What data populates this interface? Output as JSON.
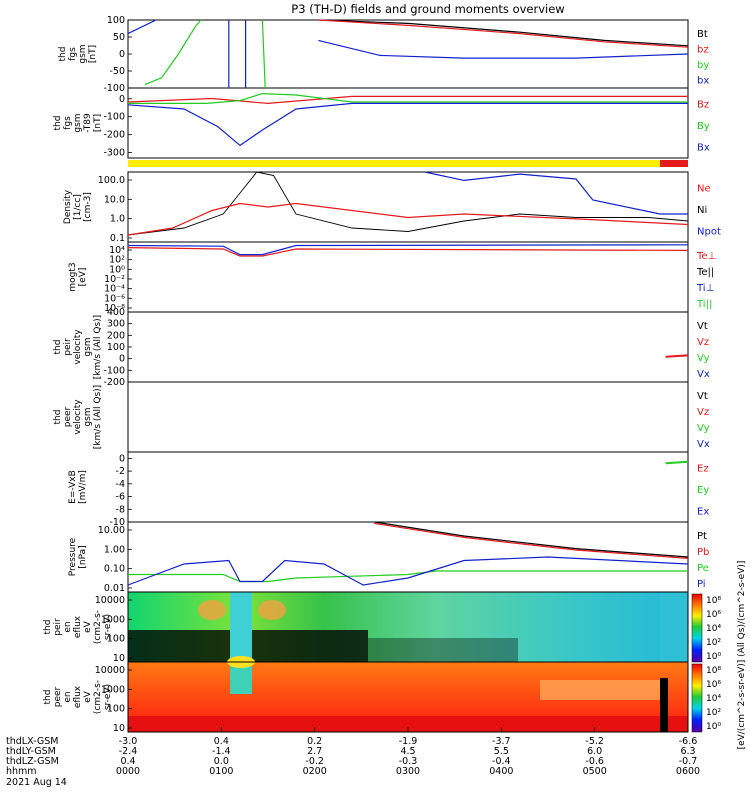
{
  "title": "P3 (TH-D) fields and ground moments overview",
  "colors": {
    "black": "#000000",
    "red": "#e41a1c",
    "green": "#22cc22",
    "blue": "#1122cc",
    "yellow": "#ffee00"
  },
  "chart_data": [
    {
      "type": "line",
      "panel_label": [
        "thd",
        "fgs",
        "gsm",
        "[nT]"
      ],
      "ylim": [
        -100,
        100
      ],
      "yticks": [
        100,
        50,
        0,
        -50,
        -100
      ],
      "series": [
        {
          "name": "Bt",
          "color": "black"
        },
        {
          "name": "bz",
          "color": "red"
        },
        {
          "name": "by",
          "color": "green"
        },
        {
          "name": "bx",
          "color": "blue"
        }
      ]
    },
    {
      "type": "line",
      "panel_label": [
        "thd",
        "fgs",
        "gsm",
        "-T89",
        "[nT]"
      ],
      "ylim": [
        -330,
        60
      ],
      "yticks": [
        0,
        -100,
        -200,
        -300
      ],
      "series": [
        {
          "name": "Bz",
          "color": "red"
        },
        {
          "name": "By",
          "color": "green"
        },
        {
          "name": "Bx",
          "color": "blue"
        }
      ]
    },
    {
      "type": "bar",
      "role": "mode-bar",
      "segments": [
        {
          "start": 0.0,
          "end": 0.925,
          "color": "yellow"
        },
        {
          "start": 0.925,
          "end": 1.0,
          "color": "red"
        }
      ]
    },
    {
      "type": "line",
      "panel_label": [
        "Density",
        "[1/cc]",
        "[cm-3]"
      ],
      "scale": "log",
      "ylim": [
        0.04,
        200
      ],
      "yticks": [
        "100.0",
        "10.0",
        "1.0",
        "0.1"
      ],
      "series": [
        {
          "name": "Ne",
          "color": "red"
        },
        {
          "name": "Ni",
          "color": "black"
        },
        {
          "name": "Npot",
          "color": "blue"
        }
      ]
    },
    {
      "type": "line",
      "panel_label": [
        "mogt3",
        "[eV]"
      ],
      "scale": "log",
      "yticks": [
        "10⁴",
        "10²",
        "10⁰",
        "10⁻²",
        "10⁻⁴",
        "10⁻⁶",
        "10⁻⁸"
      ],
      "series": [
        {
          "name": "Te⊥",
          "color": "red"
        },
        {
          "name": "Te||",
          "color": "black"
        },
        {
          "name": "Ti⊥",
          "color": "blue"
        },
        {
          "name": "Ti||",
          "color": "green"
        }
      ]
    },
    {
      "type": "line",
      "panel_label": [
        "thd",
        "peir",
        "velocity",
        "gsm",
        "[km/s (All Qs)]"
      ],
      "ylim": [
        -200,
        400
      ],
      "yticks": [
        400,
        300,
        200,
        100,
        0,
        -100,
        -200
      ],
      "series": [
        {
          "name": "Vt",
          "color": "black"
        },
        {
          "name": "Vz",
          "color": "red"
        },
        {
          "name": "Vy",
          "color": "green"
        },
        {
          "name": "Vx",
          "color": "blue"
        }
      ]
    },
    {
      "type": "line",
      "panel_label": [
        "thd",
        "peer",
        "velocity",
        "gsm",
        "[km/s (All Qs)]"
      ],
      "series": [
        {
          "name": "Vt",
          "color": "black"
        },
        {
          "name": "Vz",
          "color": "red"
        },
        {
          "name": "Vy",
          "color": "green"
        },
        {
          "name": "Vx",
          "color": "blue"
        }
      ]
    },
    {
      "type": "line",
      "panel_label": [
        "E=-VxB",
        "[mV/m]"
      ],
      "ylim": [
        -10,
        1
      ],
      "yticks": [
        0,
        -2,
        -4,
        -6,
        -8,
        -10
      ],
      "series": [
        {
          "name": "Ez",
          "color": "red"
        },
        {
          "name": "Ey",
          "color": "green"
        },
        {
          "name": "Ex",
          "color": "blue"
        }
      ]
    },
    {
      "type": "line",
      "panel_label": [
        "Pressure",
        "[nPa]"
      ],
      "scale": "log",
      "ylim": [
        0.004,
        40
      ],
      "yticks": [
        "10.00",
        "1.00",
        "0.10",
        "0.01"
      ],
      "series": [
        {
          "name": "Pt",
          "color": "black"
        },
        {
          "name": "Pb",
          "color": "red"
        },
        {
          "name": "Pe",
          "color": "green"
        },
        {
          "name": "Pi",
          "color": "blue"
        }
      ]
    },
    {
      "type": "heatmap",
      "panel_label": [
        "thd",
        "peir",
        "en",
        "eflux",
        "eV",
        "(cm2-s-",
        "sr-eV)"
      ],
      "yticks": [
        "10000",
        "1000",
        "100",
        "10"
      ]
    },
    {
      "type": "heatmap",
      "panel_label": [
        "thd",
        "peer",
        "en",
        "eflux",
        "eV",
        "(cm2-s-",
        "sr-eV)"
      ],
      "yticks": [
        "10000",
        "1000",
        "100",
        "10"
      ]
    }
  ],
  "colorbar": {
    "ion_ticks": [
      "10⁸",
      "10⁶",
      "10⁴",
      "10²",
      "10⁰"
    ],
    "electron_ticks": [
      "10⁸",
      "10⁶",
      "10⁴",
      "10²",
      "10⁰"
    ],
    "label": "[eV/(cm^2-s-sr-eV)] (All Qs)/(cm^2-s-eV)]"
  },
  "x_axis": {
    "row_labels": [
      "thdLX-GSM",
      "thdLY-GSM",
      "thdLZ-GSM",
      "hhmm"
    ],
    "columns": [
      [
        "-3.0",
        "-2.4",
        "0.4",
        "0000"
      ],
      [
        "0.4",
        "-1.4",
        "0.0",
        "0100"
      ],
      [
        "0.2",
        "2.7",
        "-0.2",
        "0200"
      ],
      [
        "-1.9",
        "4.5",
        "-0.3",
        "0300"
      ],
      [
        "-3.7",
        "5.5",
        "-0.4",
        "0400"
      ],
      [
        "-5.2",
        "6.0",
        "-0.6",
        "0500"
      ],
      [
        "-6.6",
        "6.3",
        "-0.7",
        "0600"
      ]
    ],
    "date": "2021 Aug 14"
  }
}
